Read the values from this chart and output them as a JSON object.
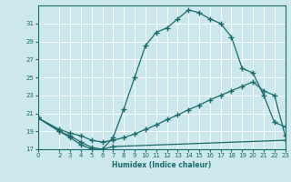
{
  "xlabel": "Humidex (Indice chaleur)",
  "background_color": "#cce8ec",
  "line_color": "#1a6b6b",
  "grid_color": "#ffffff",
  "ylim": [
    17,
    33
  ],
  "xlim": [
    0,
    23
  ],
  "yticks": [
    17,
    19,
    21,
    23,
    25,
    27,
    29,
    31
  ],
  "xticks": [
    0,
    2,
    3,
    4,
    5,
    6,
    7,
    8,
    9,
    10,
    11,
    12,
    13,
    14,
    15,
    16,
    17,
    18,
    19,
    20,
    21,
    22,
    23
  ],
  "series1_x": [
    0,
    2,
    3,
    4,
    5,
    6,
    7,
    23
  ],
  "series1_y": [
    20.5,
    19.0,
    18.3,
    17.5,
    17.0,
    17.0,
    17.3,
    18.0
  ],
  "series2_x": [
    0,
    2,
    3,
    4,
    5,
    6,
    7,
    8,
    9,
    10,
    11,
    12,
    13,
    14,
    15,
    16,
    17,
    18,
    19,
    20,
    21,
    22,
    23
  ],
  "series2_y": [
    20.5,
    19.2,
    18.8,
    18.5,
    18.0,
    17.8,
    18.0,
    18.3,
    18.7,
    19.2,
    19.7,
    20.3,
    20.8,
    21.4,
    21.9,
    22.5,
    23.0,
    23.5,
    24.0,
    24.5,
    23.5,
    23.0,
    18.5
  ],
  "series3_x": [
    0,
    2,
    3,
    4,
    5,
    6,
    7,
    8,
    9,
    10,
    11,
    12,
    13,
    14,
    15,
    16,
    17,
    18,
    19,
    20,
    21,
    22,
    23
  ],
  "series3_y": [
    20.5,
    19.0,
    18.5,
    17.8,
    17.2,
    17.0,
    18.3,
    21.5,
    25.0,
    28.5,
    30.0,
    30.5,
    31.5,
    32.5,
    32.2,
    31.5,
    31.0,
    29.5,
    26.0,
    25.5,
    23.0,
    20.0,
    19.5
  ]
}
